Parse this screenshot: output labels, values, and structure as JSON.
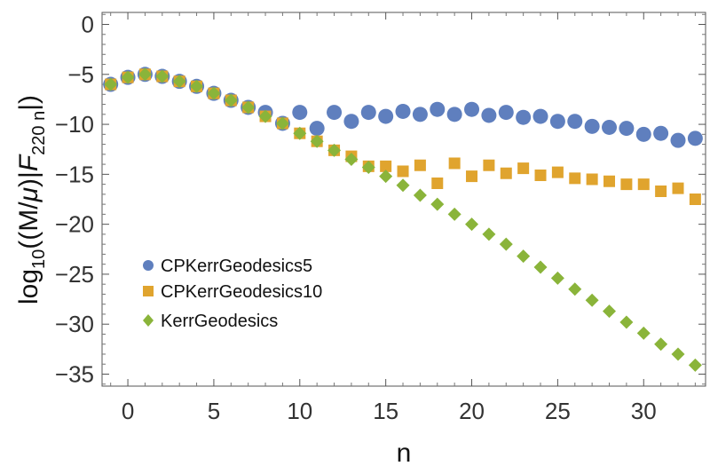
{
  "chart_data": {
    "type": "scatter",
    "title": "",
    "xlabel": "n",
    "ylabel_parts": {
      "base": "log",
      "base_sub": "10",
      "mid": "((M/",
      "mu": "μ",
      "mid2": ")|",
      "F": "F",
      "F_sub": "220 n",
      "tail": "|)"
    },
    "xlim": [
      -1.5,
      33.6
    ],
    "ylim": [
      -36.2,
      1.2
    ],
    "xticks": [
      0,
      5,
      10,
      15,
      20,
      25,
      30
    ],
    "yticks": [
      0,
      -5,
      -10,
      -15,
      -20,
      -25,
      -30,
      -35
    ],
    "xtick_labels": [
      "0",
      "5",
      "10",
      "15",
      "20",
      "25",
      "30"
    ],
    "ytick_labels": [
      "0",
      "−5",
      "−10",
      "−15",
      "−20",
      "−25",
      "−30",
      "−35"
    ],
    "legend_position": "lower-left",
    "series": [
      {
        "name": "CPKerrGeodesics5",
        "marker": "circle",
        "color": "#5F7FBE",
        "points": [
          [
            -1,
            -6.0
          ],
          [
            0,
            -5.3
          ],
          [
            1,
            -5.0
          ],
          [
            2,
            -5.2
          ],
          [
            3,
            -5.7
          ],
          [
            4,
            -6.2
          ],
          [
            5,
            -6.9
          ],
          [
            6,
            -7.6
          ],
          [
            7,
            -8.3
          ],
          [
            8,
            -8.8
          ],
          [
            9,
            -9.9
          ],
          [
            10,
            -8.8
          ],
          [
            11,
            -10.4
          ],
          [
            12,
            -8.8
          ],
          [
            13,
            -9.7
          ],
          [
            14,
            -8.8
          ],
          [
            15,
            -9.2
          ],
          [
            16,
            -8.7
          ],
          [
            17,
            -9.0
          ],
          [
            18,
            -8.5
          ],
          [
            19,
            -9.0
          ],
          [
            20,
            -8.5
          ],
          [
            21,
            -9.1
          ],
          [
            22,
            -8.8
          ],
          [
            23,
            -9.3
          ],
          [
            24,
            -9.2
          ],
          [
            25,
            -9.7
          ],
          [
            26,
            -9.7
          ],
          [
            27,
            -10.2
          ],
          [
            28,
            -10.3
          ],
          [
            29,
            -10.4
          ],
          [
            30,
            -11.0
          ],
          [
            31,
            -10.9
          ],
          [
            32,
            -11.6
          ],
          [
            33,
            -11.4
          ]
        ]
      },
      {
        "name": "CPKerrGeodesics10",
        "marker": "square",
        "color": "#E0A42E",
        "points": [
          [
            -1,
            -6.0
          ],
          [
            0,
            -5.3
          ],
          [
            1,
            -5.0
          ],
          [
            2,
            -5.2
          ],
          [
            3,
            -5.7
          ],
          [
            4,
            -6.2
          ],
          [
            5,
            -6.9
          ],
          [
            6,
            -7.6
          ],
          [
            7,
            -8.3
          ],
          [
            8,
            -9.2
          ],
          [
            9,
            -9.9
          ],
          [
            10,
            -10.9
          ],
          [
            11,
            -11.7
          ],
          [
            12,
            -12.6
          ],
          [
            13,
            -13.2
          ],
          [
            14,
            -14.2
          ],
          [
            15,
            -14.2
          ],
          [
            16,
            -14.7
          ],
          [
            17,
            -14.1
          ],
          [
            18,
            -15.9
          ],
          [
            19,
            -13.9
          ],
          [
            20,
            -15.2
          ],
          [
            21,
            -14.1
          ],
          [
            22,
            -14.9
          ],
          [
            23,
            -14.4
          ],
          [
            24,
            -15.1
          ],
          [
            25,
            -14.8
          ],
          [
            26,
            -15.4
          ],
          [
            27,
            -15.5
          ],
          [
            28,
            -15.7
          ],
          [
            29,
            -16.0
          ],
          [
            30,
            -16.0
          ],
          [
            31,
            -16.7
          ],
          [
            32,
            -16.4
          ],
          [
            33,
            -17.5
          ]
        ]
      },
      {
        "name": "KerrGeodesics",
        "marker": "diamond",
        "color": "#8AB43A",
        "points": [
          [
            -1,
            -6.0
          ],
          [
            0,
            -5.3
          ],
          [
            1,
            -5.0
          ],
          [
            2,
            -5.2
          ],
          [
            3,
            -5.7
          ],
          [
            4,
            -6.2
          ],
          [
            5,
            -6.9
          ],
          [
            6,
            -7.6
          ],
          [
            7,
            -8.3
          ],
          [
            8,
            -9.2
          ],
          [
            9,
            -9.9
          ],
          [
            10,
            -10.9
          ],
          [
            11,
            -11.7
          ],
          [
            12,
            -12.6
          ],
          [
            13,
            -13.5
          ],
          [
            14,
            -14.3
          ],
          [
            15,
            -15.2
          ],
          [
            16,
            -16.1
          ],
          [
            17,
            -17.1
          ],
          [
            18,
            -18.0
          ],
          [
            19,
            -19.0
          ],
          [
            20,
            -20.0
          ],
          [
            21,
            -21.0
          ],
          [
            22,
            -22.0
          ],
          [
            23,
            -23.2
          ],
          [
            24,
            -24.3
          ],
          [
            25,
            -25.4
          ],
          [
            26,
            -26.5
          ],
          [
            27,
            -27.6
          ],
          [
            28,
            -28.7
          ],
          [
            29,
            -29.8
          ],
          [
            30,
            -30.9
          ],
          [
            31,
            -32.0
          ],
          [
            32,
            -33.0
          ],
          [
            33,
            -34.1
          ]
        ]
      }
    ]
  }
}
